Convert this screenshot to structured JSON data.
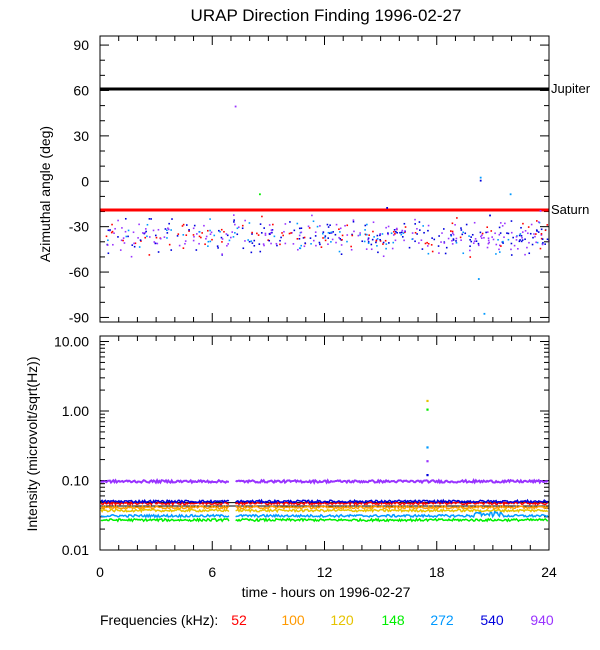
{
  "chart_data": [
    {
      "type": "scatter",
      "title": "URAP Direction Finding  1996-02-27",
      "ylabel": "Azimuthal angle (deg)",
      "xlim": [
        0,
        24
      ],
      "ylim": [
        -93,
        96
      ],
      "yticks": [
        90,
        60,
        30,
        0,
        -30,
        -60,
        -90
      ],
      "reference_lines": [
        {
          "label": "Jupiter",
          "y": 61,
          "color": "#000000"
        },
        {
          "label": "Saturn",
          "y": -19,
          "color": "#ff0000"
        }
      ],
      "scatter_band": {
        "x_start": 0.3,
        "x_end": 24,
        "y_center": -36,
        "y_spread": 9
      },
      "outliers": [
        {
          "x": 7.2,
          "y": 50,
          "series": "940"
        },
        {
          "x": 8.5,
          "y": -8,
          "series": "148"
        },
        {
          "x": 15.3,
          "y": -17,
          "series": "540"
        },
        {
          "x": 20.3,
          "y": 3,
          "series": "272"
        },
        {
          "x": 20.3,
          "y": 1,
          "series": "540"
        },
        {
          "x": 21.9,
          "y": -8,
          "series": "272"
        },
        {
          "x": 20.2,
          "y": -64,
          "series": "272"
        },
        {
          "x": 20.5,
          "y": -87,
          "series": "272"
        },
        {
          "x": 20.8,
          "y": -22,
          "series": "540"
        },
        {
          "x": 23.5,
          "y": -19,
          "series": "940"
        }
      ]
    },
    {
      "type": "line",
      "ylabel": "Intensity (microvolt/sqrt(Hz))",
      "xlabel": "time - hours on 1996-02-27",
      "xlim": [
        0,
        24
      ],
      "xticks": [
        0,
        6,
        12,
        18,
        24
      ],
      "yscale": "log",
      "ylim": [
        0.01,
        12
      ],
      "yticks": [
        "10.00",
        "1.00",
        "0.10",
        "0.01"
      ],
      "reference_levels": [
        0.048,
        0.043
      ],
      "series": [
        {
          "name": "52",
          "level": 0.047
        },
        {
          "name": "100",
          "level": 0.041
        },
        {
          "name": "120",
          "level": 0.037
        },
        {
          "name": "148",
          "level": 0.027
        },
        {
          "name": "272",
          "level": 0.031
        },
        {
          "name": "540",
          "level": 0.05
        },
        {
          "name": "940",
          "level": 0.097
        }
      ],
      "spike": {
        "x": 17.5,
        "points": [
          {
            "y": 1.4,
            "series": "120"
          },
          {
            "y": 1.05,
            "series": "148"
          },
          {
            "y": 0.3,
            "series": "272"
          },
          {
            "y": 0.19,
            "series": "940"
          },
          {
            "y": 0.12,
            "series": "540"
          }
        ]
      }
    }
  ],
  "legend": {
    "label": "Frequencies (kHz):",
    "items": [
      {
        "name": "52",
        "color": "#ff0000"
      },
      {
        "name": "100",
        "color": "#ff9900"
      },
      {
        "name": "120",
        "color": "#e6c300"
      },
      {
        "name": "148",
        "color": "#00ee00"
      },
      {
        "name": "272",
        "color": "#0099ff"
      },
      {
        "name": "540",
        "color": "#0000dd"
      },
      {
        "name": "940",
        "color": "#9933ff"
      }
    ]
  }
}
